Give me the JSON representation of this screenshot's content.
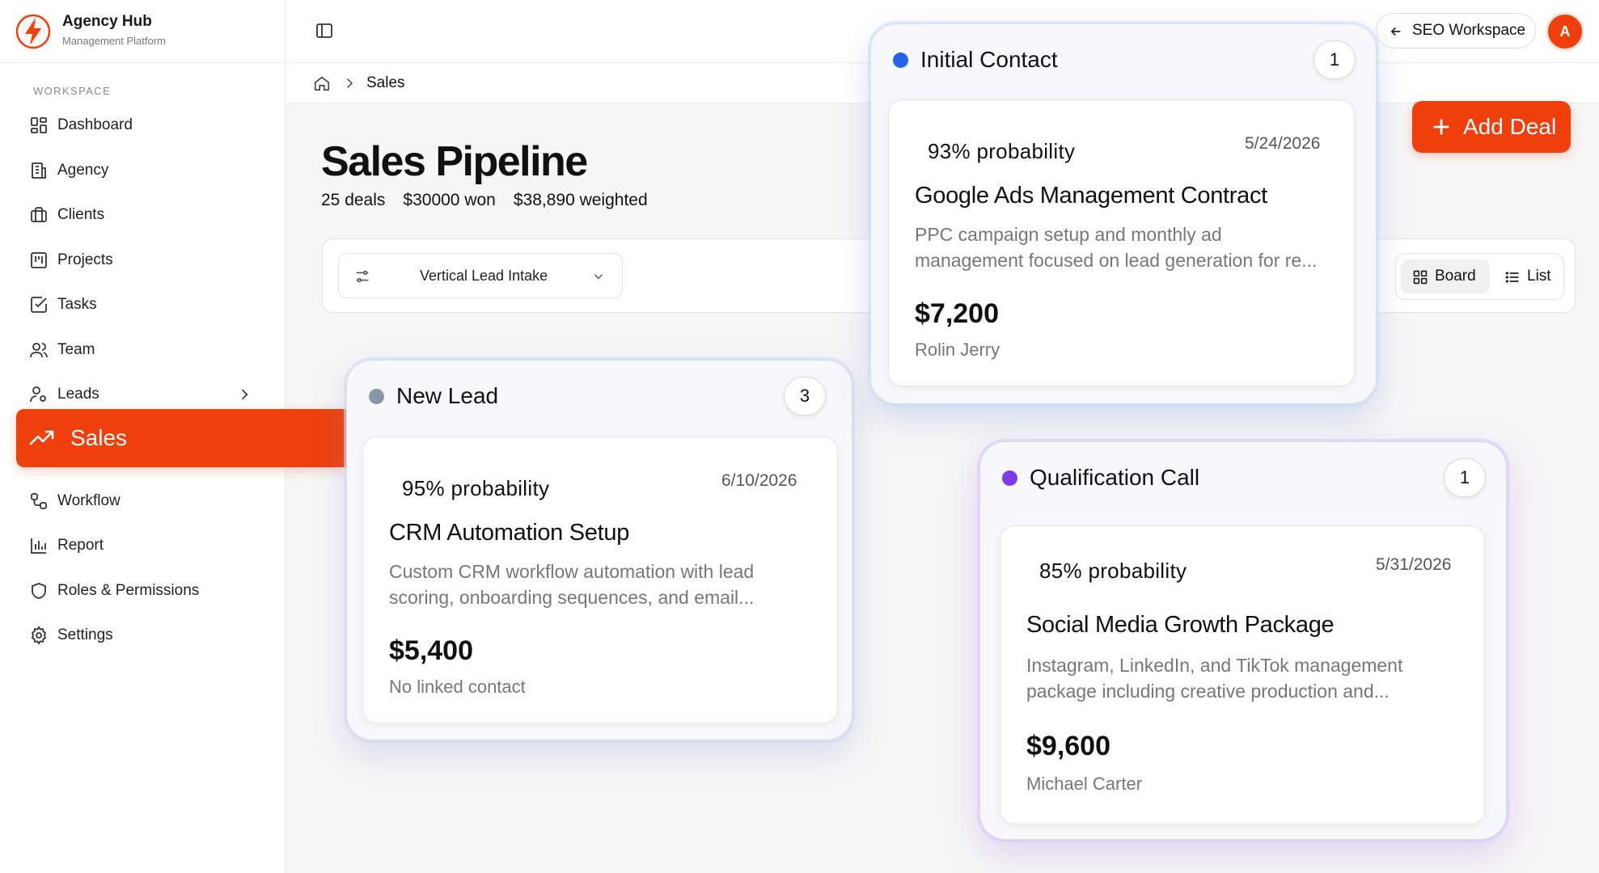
{
  "app": {
    "name": "Agency Hub",
    "subtitle": "Management Platform",
    "logo_color": "#ee3f0c"
  },
  "sidebar": {
    "section_label": "WORKSPACE",
    "items": [
      {
        "label": "Dashboard",
        "icon": "dashboard-icon"
      },
      {
        "label": "Agency",
        "icon": "building-icon"
      },
      {
        "label": "Clients",
        "icon": "briefcase-icon"
      },
      {
        "label": "Projects",
        "icon": "kanban-icon"
      },
      {
        "label": "Tasks",
        "icon": "checkbox-icon"
      },
      {
        "label": "Team",
        "icon": "users-icon"
      },
      {
        "label": "Leads",
        "icon": "user-plus-icon",
        "has_submenu": true
      },
      {
        "label": "Sales",
        "icon": "trending-up-icon",
        "active": true
      },
      {
        "label": "Workflow",
        "icon": "workflow-icon"
      },
      {
        "label": "Report",
        "icon": "bar-chart-icon"
      },
      {
        "label": "Roles & Permissions",
        "icon": "shield-icon"
      },
      {
        "label": "Settings",
        "icon": "gear-icon"
      }
    ]
  },
  "topbar": {
    "workspace_label": "SEO Workspace",
    "avatar_initial": "A"
  },
  "breadcrumb": {
    "current": "Sales"
  },
  "page": {
    "title": "Sales Pipeline",
    "stats": {
      "deals": "25 deals",
      "won": "$30000 won",
      "weighted": "$38,890 weighted"
    },
    "partial_button_text": "/",
    "add_deal_label": "Add Deal"
  },
  "filters": {
    "pipeline_select": "Vertical Lead Intake",
    "view_board": "Board",
    "view_list": "List",
    "active_view": "Board"
  },
  "colors": {
    "accent": "#ee3f0c",
    "stage_new_lead": "#8a94a8",
    "stage_initial_contact": "#2563eb",
    "stage_qualification": "#7c3aed"
  },
  "stages": {
    "initial_contact": {
      "name": "Initial Contact",
      "count": "1",
      "deal": {
        "probability": "93% probability",
        "date": "5/24/2026",
        "title": "Google Ads Management Contract",
        "description_line1": "PPC campaign setup and monthly ad",
        "description_line2": "management focused on lead generation for re...",
        "amount": "$7,200",
        "contact": "Rolin Jerry"
      }
    },
    "new_lead": {
      "name": "New Lead",
      "count": "3",
      "deal": {
        "probability": "95% probability",
        "date": "6/10/2026",
        "title": "CRM Automation Setup",
        "description_line1": "Custom CRM workflow automation with lead",
        "description_line2": "scoring, onboarding sequences, and email...",
        "amount": "$5,400",
        "contact": "No linked contact"
      }
    },
    "qualification_call": {
      "name": "Qualification Call",
      "count": "1",
      "deal": {
        "probability": "85% probability",
        "date": "5/31/2026",
        "title": "Social Media Growth Package",
        "description_line1": "Instagram, LinkedIn, and TikTok management",
        "description_line2": "package including creative production and...",
        "amount": "$9,600",
        "contact": "Michael Carter"
      }
    }
  }
}
